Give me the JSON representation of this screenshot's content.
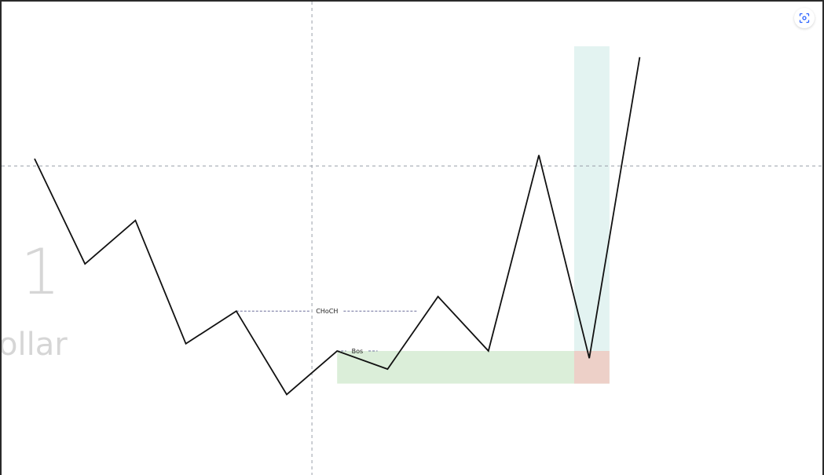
{
  "watermark": {
    "number": "1",
    "word": "ollar"
  },
  "icons": {
    "screenshot": "camera-icon"
  },
  "colors": {
    "line": "#111111",
    "profit_zone": "#d4ece9",
    "loss_zone": "#f3c6c2",
    "demand_zone": "#cfe8cc",
    "crosshair": "#9aa0aa",
    "annotation": "#6b6f9a"
  },
  "chart_data": {
    "type": "line",
    "title": "",
    "xlabel": "",
    "ylabel": "",
    "grid": false,
    "series": [
      {
        "values": [
          [
            0,
            82
          ],
          [
            1,
            53
          ],
          [
            2,
            65
          ],
          [
            3,
            31
          ],
          [
            4,
            40
          ],
          [
            5,
            17
          ],
          [
            6,
            29
          ],
          [
            7,
            24
          ],
          [
            8,
            44
          ],
          [
            9,
            29
          ],
          [
            10,
            83
          ],
          [
            11,
            27
          ],
          [
            12,
            110
          ]
        ]
      }
    ],
    "annotations": [
      {
        "label": "CHoCH",
        "level": 40,
        "from": 4,
        "to": 7.6
      },
      {
        "label": "Bos",
        "level": 29,
        "from": 6,
        "to": 6.8
      }
    ],
    "zones": [
      {
        "kind": "demand",
        "from": 6.0,
        "to": 11.4,
        "low": 20,
        "high": 29
      },
      {
        "kind": "profit",
        "from": 10.7,
        "to": 11.4,
        "low": 29,
        "high": 113
      },
      {
        "kind": "loss",
        "from": 10.7,
        "to": 11.4,
        "low": 20,
        "high": 29
      }
    ],
    "crosshair": {
      "x": 5.5,
      "y": 80
    }
  }
}
